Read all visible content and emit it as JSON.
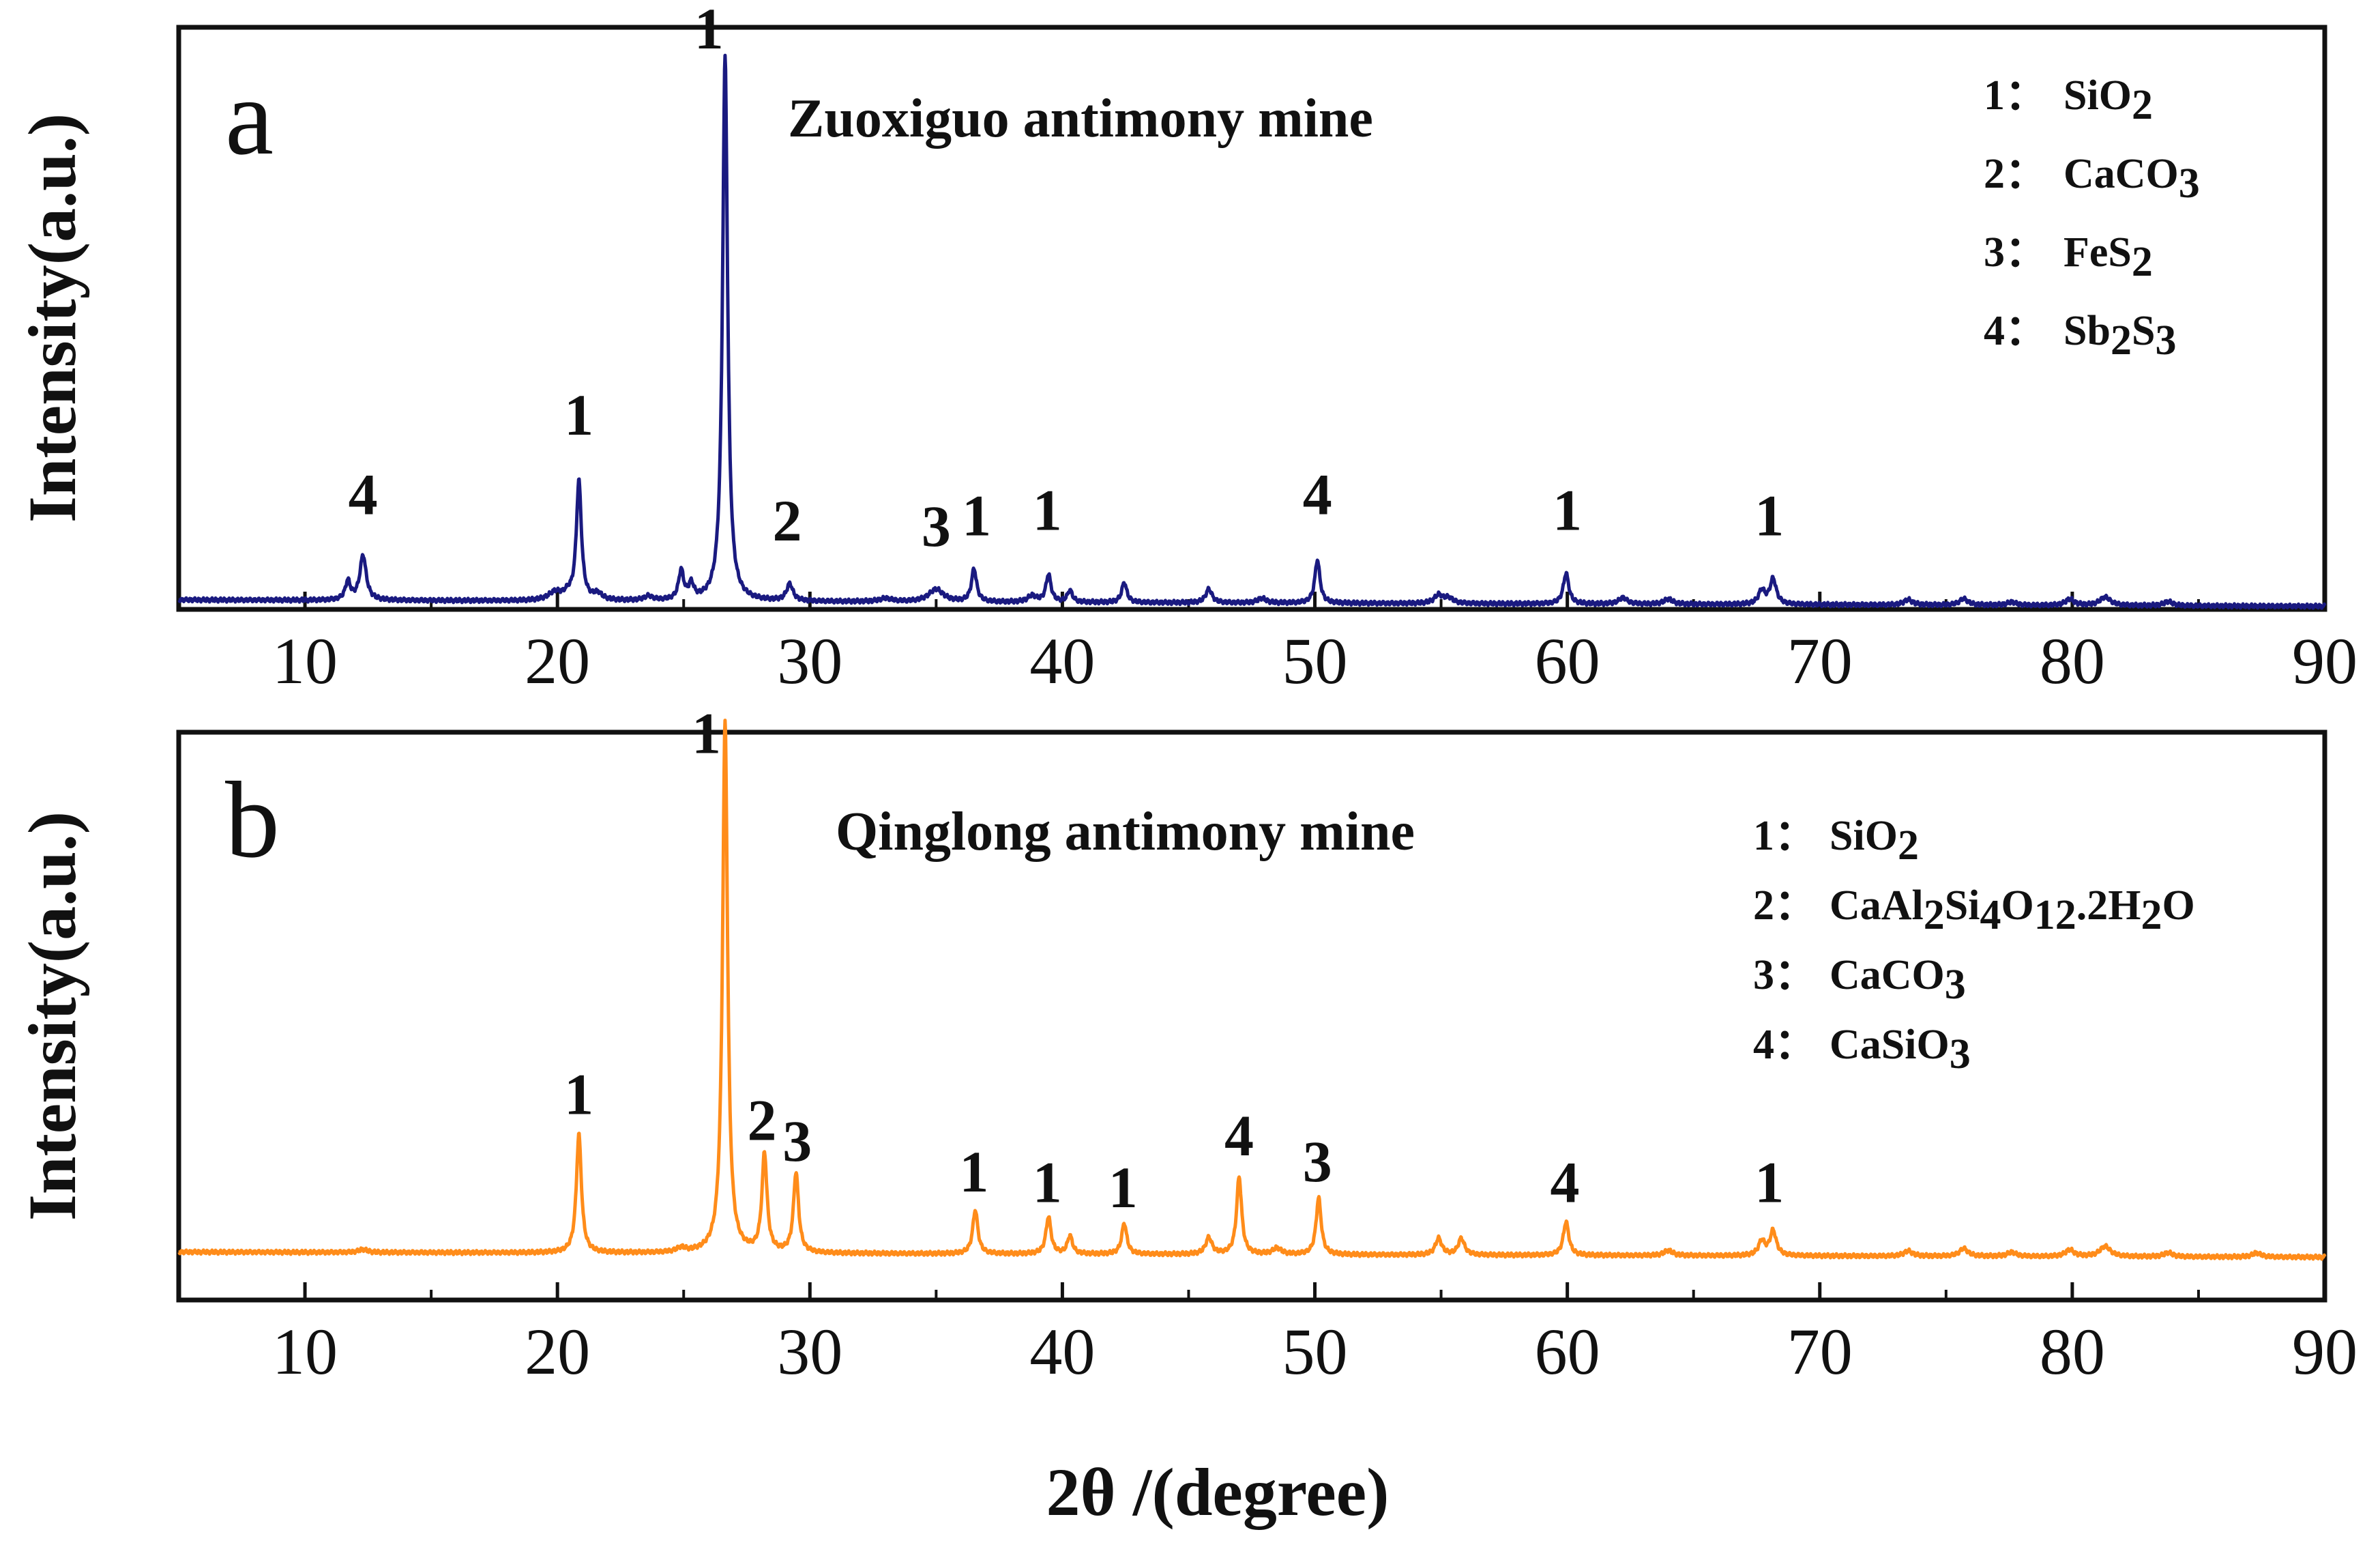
{
  "figure": {
    "xlabel": "2θ /(degree)"
  },
  "chart_data": [
    {
      "type": "line",
      "panel_letter": "a",
      "title": "Zuoxiguo antimony mine",
      "xlabel": "2θ /(degree)",
      "ylabel": "Intensity(a.u.)",
      "xlim": [
        5,
        90
      ],
      "ylim": [
        0,
        110
      ],
      "xticks": [
        10,
        20,
        30,
        40,
        50,
        60,
        70,
        80,
        90
      ],
      "xtick_labels": [
        "10",
        "20",
        "30",
        "40",
        "50",
        "60",
        "70",
        "80",
        "90"
      ],
      "color": "#1a1a80",
      "baseline": {
        "x": [
          5,
          90
        ],
        "y": [
          1.8,
          0.6
        ]
      },
      "peaks": [
        {
          "x": 11.7,
          "h": 3.5,
          "w": 0.12
        },
        {
          "x": 12.3,
          "h": 8.5,
          "w": 0.15
        },
        {
          "x": 19.9,
          "h": 1.5,
          "w": 0.3
        },
        {
          "x": 20.4,
          "h": 1.0,
          "w": 0.2
        },
        {
          "x": 20.85,
          "h": 22.5,
          "w": 0.12
        },
        {
          "x": 21.6,
          "h": 1.2,
          "w": 0.2
        },
        {
          "x": 23.6,
          "h": 0.8,
          "w": 0.2
        },
        {
          "x": 24.9,
          "h": 5.5,
          "w": 0.12
        },
        {
          "x": 25.3,
          "h": 2.8,
          "w": 0.12
        },
        {
          "x": 26.64,
          "h": 103,
          "w": 0.12
        },
        {
          "x": 29.2,
          "h": 3.2,
          "w": 0.15
        },
        {
          "x": 33.0,
          "h": 0.6,
          "w": 0.3
        },
        {
          "x": 35.0,
          "h": 2.4,
          "w": 0.35
        },
        {
          "x": 36.5,
          "h": 6.2,
          "w": 0.12
        },
        {
          "x": 38.8,
          "h": 1.2,
          "w": 0.2
        },
        {
          "x": 39.45,
          "h": 5.2,
          "w": 0.12
        },
        {
          "x": 40.3,
          "h": 2.2,
          "w": 0.12
        },
        {
          "x": 42.45,
          "h": 3.8,
          "w": 0.12
        },
        {
          "x": 45.8,
          "h": 2.6,
          "w": 0.15
        },
        {
          "x": 47.9,
          "h": 0.9,
          "w": 0.2
        },
        {
          "x": 50.1,
          "h": 8.2,
          "w": 0.12
        },
        {
          "x": 54.9,
          "h": 1.6,
          "w": 0.2
        },
        {
          "x": 55.3,
          "h": 1.0,
          "w": 0.2
        },
        {
          "x": 59.95,
          "h": 5.8,
          "w": 0.13
        },
        {
          "x": 62.2,
          "h": 1.2,
          "w": 0.2
        },
        {
          "x": 64.0,
          "h": 1.0,
          "w": 0.2
        },
        {
          "x": 67.7,
          "h": 2.6,
          "w": 0.15
        },
        {
          "x": 68.15,
          "h": 4.8,
          "w": 0.15
        },
        {
          "x": 73.5,
          "h": 1.0,
          "w": 0.2
        },
        {
          "x": 75.7,
          "h": 1.2,
          "w": 0.2
        },
        {
          "x": 77.6,
          "h": 0.6,
          "w": 0.2
        },
        {
          "x": 79.9,
          "h": 1.2,
          "w": 0.2
        },
        {
          "x": 81.3,
          "h": 1.6,
          "w": 0.25
        },
        {
          "x": 83.8,
          "h": 0.8,
          "w": 0.2
        }
      ],
      "annotations": [
        {
          "text": "4",
          "x": 12.3,
          "y": 18
        },
        {
          "text": "1",
          "x": 20.85,
          "y": 33
        },
        {
          "text": "1",
          "x": 26.0,
          "y": 106
        },
        {
          "text": "2",
          "x": 29.1,
          "y": 13
        },
        {
          "text": "3",
          "x": 35.0,
          "y": 12
        },
        {
          "text": "1",
          "x": 36.6,
          "y": 14
        },
        {
          "text": "1",
          "x": 39.4,
          "y": 15
        },
        {
          "text": "4",
          "x": 50.1,
          "y": 18
        },
        {
          "text": "1",
          "x": 60.0,
          "y": 15
        },
        {
          "text": "1",
          "x": 68.0,
          "y": 14
        }
      ],
      "legend": [
        {
          "num": "1：",
          "parts": [
            {
              "t": "SiO"
            },
            {
              "t": "2",
              "sub": true
            }
          ]
        },
        {
          "num": "2：",
          "parts": [
            {
              "t": "CaCO"
            },
            {
              "t": "3",
              "sub": true
            }
          ]
        },
        {
          "num": "3：",
          "parts": [
            {
              "t": "FeS"
            },
            {
              "t": "2",
              "sub": true
            }
          ]
        },
        {
          "num": "4：",
          "parts": [
            {
              "t": "Sb"
            },
            {
              "t": "2",
              "sub": true
            },
            {
              "t": "S"
            },
            {
              "t": "3",
              "sub": true
            }
          ]
        }
      ]
    },
    {
      "type": "line",
      "panel_letter": "b",
      "title": "Qinglong antimony mine",
      "xlabel": "2θ /(degree)",
      "ylabel": "Intensity(a.u.)",
      "xlim": [
        5,
        90
      ],
      "ylim": [
        0,
        110
      ],
      "xticks": [
        10,
        20,
        30,
        40,
        50,
        60,
        70,
        80,
        90
      ],
      "xtick_labels": [
        "10",
        "20",
        "30",
        "40",
        "50",
        "60",
        "70",
        "80",
        "90"
      ],
      "color": "#ff8c1a",
      "baseline": {
        "x": [
          5,
          90
        ],
        "y": [
          9.3,
          8.3
        ]
      },
      "peaks": [
        {
          "x": 12.3,
          "h": 0.6,
          "w": 0.2
        },
        {
          "x": 20.85,
          "h": 23,
          "w": 0.12
        },
        {
          "x": 24.9,
          "h": 0.8,
          "w": 0.2
        },
        {
          "x": 26.64,
          "h": 103,
          "w": 0.12
        },
        {
          "x": 28.2,
          "h": 19,
          "w": 0.12
        },
        {
          "x": 29.45,
          "h": 15.5,
          "w": 0.12
        },
        {
          "x": 36.55,
          "h": 8.5,
          "w": 0.12
        },
        {
          "x": 39.45,
          "h": 7.2,
          "w": 0.12
        },
        {
          "x": 40.3,
          "h": 3.5,
          "w": 0.12
        },
        {
          "x": 42.45,
          "h": 6.0,
          "w": 0.12
        },
        {
          "x": 45.8,
          "h": 3.2,
          "w": 0.15
        },
        {
          "x": 47.0,
          "h": 15,
          "w": 0.12
        },
        {
          "x": 48.5,
          "h": 1.2,
          "w": 0.2
        },
        {
          "x": 50.15,
          "h": 11,
          "w": 0.12
        },
        {
          "x": 54.9,
          "h": 3.2,
          "w": 0.15
        },
        {
          "x": 55.8,
          "h": 3.2,
          "w": 0.15
        },
        {
          "x": 59.95,
          "h": 6.5,
          "w": 0.13
        },
        {
          "x": 64.0,
          "h": 1.0,
          "w": 0.2
        },
        {
          "x": 67.7,
          "h": 2.8,
          "w": 0.15
        },
        {
          "x": 68.15,
          "h": 4.8,
          "w": 0.15
        },
        {
          "x": 73.5,
          "h": 1.0,
          "w": 0.2
        },
        {
          "x": 75.7,
          "h": 1.5,
          "w": 0.2
        },
        {
          "x": 77.6,
          "h": 0.8,
          "w": 0.2
        },
        {
          "x": 79.9,
          "h": 1.3,
          "w": 0.2
        },
        {
          "x": 81.3,
          "h": 2.0,
          "w": 0.25
        },
        {
          "x": 83.8,
          "h": 0.8,
          "w": 0.2
        },
        {
          "x": 87.3,
          "h": 0.8,
          "w": 0.2
        }
      ],
      "annotations": [
        {
          "text": "1",
          "x": 20.85,
          "y": 36
        },
        {
          "text": "1",
          "x": 25.9,
          "y": 106
        },
        {
          "text": "2",
          "x": 28.1,
          "y": 31
        },
        {
          "text": "3",
          "x": 29.5,
          "y": 27
        },
        {
          "text": "1",
          "x": 36.5,
          "y": 21
        },
        {
          "text": "1",
          "x": 39.4,
          "y": 19
        },
        {
          "text": "1",
          "x": 42.4,
          "y": 18
        },
        {
          "text": "4",
          "x": 47.0,
          "y": 28
        },
        {
          "text": "3",
          "x": 50.1,
          "y": 23
        },
        {
          "text": "4",
          "x": 59.9,
          "y": 19
        },
        {
          "text": "1",
          "x": 68.0,
          "y": 19
        }
      ],
      "legend": [
        {
          "num": "1：",
          "parts": [
            {
              "t": "SiO"
            },
            {
              "t": "2",
              "sub": true
            }
          ]
        },
        {
          "num": "2：",
          "parts": [
            {
              "t": "CaAl"
            },
            {
              "t": "2",
              "sub": true
            },
            {
              "t": "Si"
            },
            {
              "t": "4",
              "sub": true
            },
            {
              "t": "O"
            },
            {
              "t": "12",
              "sub": true
            },
            {
              "t": ".2H"
            },
            {
              "t": "2",
              "sub": true
            },
            {
              "t": "O"
            }
          ]
        },
        {
          "num": "3：",
          "parts": [
            {
              "t": "CaCO"
            },
            {
              "t": "3",
              "sub": true
            }
          ]
        },
        {
          "num": "4：",
          "parts": [
            {
              "t": "CaSiO"
            },
            {
              "t": "3",
              "sub": true
            }
          ]
        }
      ]
    }
  ]
}
